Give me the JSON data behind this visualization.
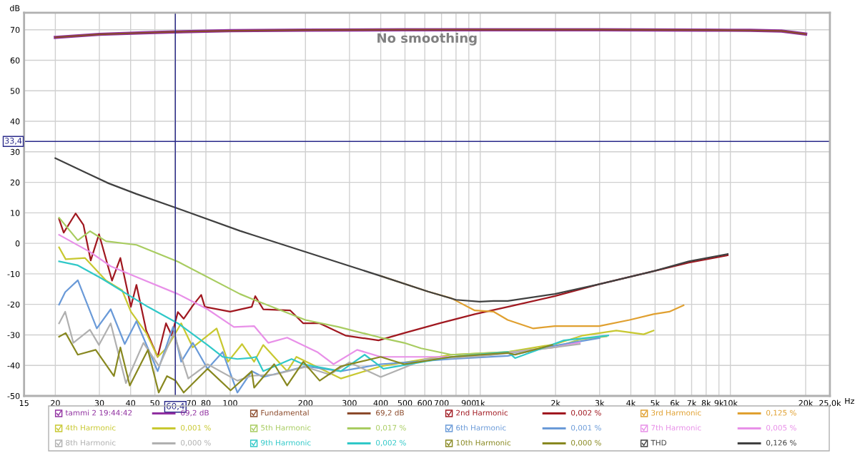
{
  "chart_data": {
    "type": "line",
    "title": "No smoothing",
    "xlabel": "Hz",
    "ylabel": "dB",
    "log": "x",
    "grid": true,
    "legend": "bottom",
    "xlim": [
      15,
      25000
    ],
    "ylim": [
      -50,
      75.6
    ],
    "xticks": [
      15,
      20,
      30,
      40,
      50,
      {
        "value": 60,
        "label": null
      },
      70,
      80,
      100,
      200,
      300,
      400,
      500,
      600,
      700,
      {
        "value": 800,
        "label": null
      },
      900,
      {
        "value": 1000,
        "label": "1k"
      },
      {
        "value": 2000,
        "label": "2k"
      },
      {
        "value": 3000,
        "label": "3k"
      },
      {
        "value": 4000,
        "label": "4k"
      },
      {
        "value": 5000,
        "label": "5k"
      },
      {
        "value": 6000,
        "label": "6k"
      },
      {
        "value": 7000,
        "label": "7k"
      },
      {
        "value": 8000,
        "label": "8k"
      },
      {
        "value": 9000,
        "label": "9k"
      },
      {
        "value": 10000,
        "label": "10k"
      },
      {
        "value": 20000,
        "label": "20k"
      },
      {
        "value": 25000,
        "label": "25,0k"
      }
    ],
    "yticks": [
      -50,
      -40,
      -30,
      -20,
      -10,
      0,
      10,
      20,
      30,
      40,
      50,
      60,
      70
    ],
    "ref_lines": [
      {
        "axis": "x",
        "value": 60.4,
        "label": "60,4",
        "color": "#2a2a8a"
      },
      {
        "axis": "y",
        "value": 33.4,
        "label": "33,4",
        "color": "#2a2a8a"
      }
    ],
    "annotations": [
      "69,2 dB",
      "69,2 dB",
      "0,002 %",
      "0,125 %",
      "0,001 %",
      "0,017 %",
      "0,001 %",
      "0,005 %",
      "0,000 %",
      "0,002 %",
      "0,000 %",
      "0,126 %"
    ],
    "series": [
      {
        "name": "tammi 2 19:44:42",
        "color": "#9030a0",
        "x": [
          20,
          30,
          45,
          60,
          100,
          200,
          500,
          1000,
          3000,
          8000,
          12000,
          16000,
          20000
        ],
        "values": [
          67.5,
          68.5,
          69.0,
          69.3,
          69.7,
          69.9,
          70.0,
          70.0,
          70.0,
          69.9,
          69.8,
          69.6,
          68.6
        ]
      },
      {
        "name": "Fundamental",
        "color": "#8b4a2b",
        "x": [
          20,
          30,
          45,
          60,
          100,
          200,
          500,
          1000,
          3000,
          8000,
          12000,
          16000,
          20000
        ],
        "values": [
          67.5,
          68.5,
          69.0,
          69.3,
          69.7,
          69.9,
          70.0,
          70.0,
          70.0,
          69.9,
          69.8,
          69.6,
          68.6
        ]
      },
      {
        "name": "2nd Harmonic",
        "color": "#a01820",
        "x": [
          20.7,
          21.6,
          24.1,
          25.9,
          27.7,
          29.9,
          33.7,
          36.4,
          40.1,
          42.2,
          46.2,
          51.3,
          55.4,
          58.4,
          61.8,
          65.2,
          70.9,
          76.6,
          79.2,
          100,
          122,
          126,
          135.6,
          174,
          196,
          228,
          289,
          392,
          496,
          688,
          951,
          1288,
          1985,
          2990,
          4930,
          6820,
          9760
        ],
        "values": [
          8.0,
          3.5,
          9.8,
          6.1,
          -5.6,
          3.0,
          -12.2,
          -4.8,
          -20.8,
          -13.6,
          -28.6,
          -37.2,
          -26.2,
          -30.2,
          -22.5,
          -24.7,
          -20.4,
          -16.9,
          -20.8,
          -22.4,
          -20.8,
          -17.3,
          -21.6,
          -22.0,
          -26.2,
          -26.2,
          -30.2,
          -31.8,
          -29.4,
          -26.2,
          -23.2,
          -20.8,
          -17.3,
          -13.4,
          -9.1,
          -6.3,
          -3.9
        ]
      },
      {
        "name": "3rd Harmonic",
        "color": "#e0a030",
        "x": [
          400,
          619,
          767,
          951,
          1132,
          1288,
          1630,
          1985,
          2990,
          3950,
          4930,
          5700,
          6500
        ],
        "values": [
          -10.7,
          -15.8,
          -18.0,
          -22.0,
          -22.4,
          -25.1,
          -27.9,
          -27.1,
          -27.1,
          -25.1,
          -23.2,
          -22.4,
          -20.3
        ]
      },
      {
        "name": "4th Harmonic",
        "color": "#c8c830",
        "x": [
          20.7,
          22,
          26.3,
          31.9,
          37,
          40.1,
          46.2,
          51.3,
          56,
          63.7,
          70.9,
          88.3,
          98,
          111.6,
          124.7,
          135.6,
          169,
          184,
          277,
          400,
          767,
          1288,
          2000,
          2570,
          3500,
          4500,
          4930
        ],
        "values": [
          -1.3,
          -5.2,
          -4.8,
          -12.2,
          -15.4,
          -22.4,
          -29.4,
          -37.2,
          -34.1,
          -26.2,
          -34.1,
          -27.9,
          -38.8,
          -33.0,
          -38.8,
          -33.3,
          -41.9,
          -37.2,
          -44.3,
          -40.3,
          -36.5,
          -35.6,
          -33.0,
          -30.2,
          -28.6,
          -29.8,
          -28.6
        ]
      },
      {
        "name": "5th Harmonic",
        "color": "#a8cc60",
        "x": [
          20.7,
          24.6,
          27.5,
          31.9,
          42.2,
          61.8,
          109.5,
          124.7,
          200,
          272,
          400,
          496,
          580,
          767,
          1288,
          1500,
          2000,
          2500,
          3200
        ],
        "values": [
          8.4,
          1.0,
          4.0,
          0.7,
          -0.5,
          -6.0,
          -16.6,
          -18.5,
          -25.1,
          -27.4,
          -30.9,
          -32.6,
          -34.4,
          -36.5,
          -35.6,
          -35.0,
          -34.0,
          -31.5,
          -30.5
        ]
      },
      {
        "name": "6th Harmonic",
        "color": "#6a9ad8",
        "x": [
          20.7,
          21.9,
          24.6,
          29.3,
          33.3,
          37.9,
          42.2,
          51.3,
          59.1,
          63.7,
          70.9,
          81.2,
          93.3,
          106.9,
          122,
          135.6,
          200,
          277,
          400,
          767,
          1288,
          2000,
          3000
        ],
        "values": [
          -20.1,
          -16.0,
          -12.1,
          -27.9,
          -21.6,
          -33.0,
          -25.5,
          -41.9,
          -27.4,
          -38.8,
          -32.6,
          -41.1,
          -35.6,
          -48.9,
          -41.9,
          -43.8,
          -40.3,
          -41.9,
          -39.6,
          -37.9,
          -36.9,
          -33.5,
          -31.0
        ]
      },
      {
        "name": "7th Harmonic",
        "color": "#e890e8",
        "x": [
          20.7,
          27.5,
          33.3,
          42.2,
          61.8,
          81.2,
          103.5,
          124.7,
          142,
          169,
          223,
          259,
          322,
          400,
          767,
          1288,
          2000,
          2500
        ],
        "values": [
          2.8,
          -2.8,
          -7.5,
          -11.0,
          -16.6,
          -21.6,
          -27.4,
          -27.1,
          -32.6,
          -30.9,
          -35.6,
          -39.6,
          -34.9,
          -37.2,
          -37.2,
          -35.9,
          -34.0,
          -32.5
        ]
      },
      {
        "name": "8th Harmonic",
        "color": "#b0b0b0",
        "x": [
          20.7,
          21.9,
          23.6,
          27.5,
          29.9,
          33.3,
          38.3,
          45,
          52,
          59.5,
          68,
          81.2,
          106.9,
          122,
          150,
          200,
          250,
          300,
          400,
          600,
          1000,
          1300,
          2000,
          2500
        ],
        "values": [
          -26.2,
          -22.4,
          -32.6,
          -28.3,
          -33.3,
          -26.2,
          -45.8,
          -32.6,
          -40.3,
          -29.4,
          -44.3,
          -39.6,
          -45.0,
          -43.4,
          -43.0,
          -40.5,
          -43.0,
          -39.0,
          -43.8,
          -38.0,
          -37.0,
          -36.0,
          -34.0,
          -33.0
        ]
      },
      {
        "name": "9th Harmonic",
        "color": "#30c8c8",
        "x": [
          20.7,
          24.6,
          30.6,
          37.9,
          46.9,
          61.8,
          81.2,
          93.3,
          106.9,
          122,
          127,
          135.6,
          176,
          196,
          277,
          345,
          410,
          767,
          1288,
          1378,
          2160,
          3250
        ],
        "values": [
          -5.9,
          -7.2,
          -11.5,
          -16.2,
          -20.8,
          -26.2,
          -33.3,
          -37.2,
          -37.9,
          -37.5,
          -37.2,
          -41.9,
          -37.9,
          -39.6,
          -41.9,
          -36.5,
          -41.1,
          -37.2,
          -35.6,
          -37.6,
          -31.8,
          -30.2
        ]
      },
      {
        "name": "10th Harmonic",
        "color": "#888820",
        "x": [
          20.7,
          22,
          24.6,
          29,
          34.3,
          36.4,
          39.7,
          46.9,
          51.8,
          55.9,
          60.5,
          65.2,
          81.2,
          100.4,
          122,
          124.7,
          150,
          169,
          196,
          228,
          277,
          400,
          496,
          767,
          1288,
          1378,
          1942
        ],
        "values": [
          -30.6,
          -29.4,
          -36.5,
          -34.9,
          -43.5,
          -34.1,
          -46.6,
          -34.9,
          -48.9,
          -43.5,
          -45.0,
          -48.9,
          -41.1,
          -48.2,
          -41.9,
          -47.3,
          -39.6,
          -46.6,
          -38.8,
          -45.0,
          -40.3,
          -37.2,
          -39.6,
          -37.2,
          -35.9,
          -36.5,
          -33.3
        ]
      },
      {
        "name": "THD",
        "color": "#404040",
        "x": [
          20,
          26.3,
          32.6,
          42.2,
          61.5,
          109.5,
          124.7,
          400,
          619,
          800,
          995,
          1132,
          1288,
          1985,
          2990,
          4930,
          6820,
          9760
        ],
        "values": [
          27.9,
          23.3,
          19.7,
          16.2,
          11.5,
          4.1,
          2.6,
          -10.7,
          -15.8,
          -18.5,
          -19.1,
          -18.9,
          -18.9,
          -16.6,
          -13.4,
          -9.1,
          -5.9,
          -3.5
        ]
      }
    ]
  }
}
